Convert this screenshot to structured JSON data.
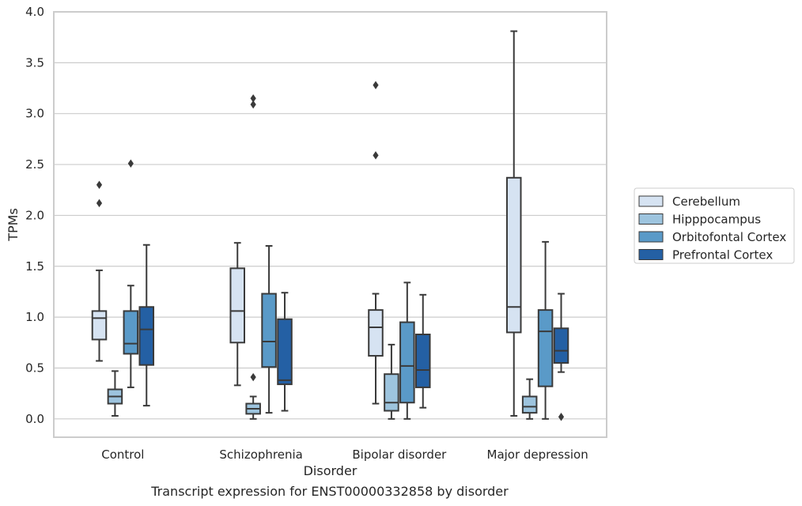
{
  "chart_data": {
    "type": "boxplot",
    "caption": "Transcript expression for ENST00000332858 by disorder",
    "xlabel": "Disorder",
    "ylabel": "TPMs",
    "ylim": [
      -0.18,
      4.0
    ],
    "yticks": [
      0.0,
      0.5,
      1.0,
      1.5,
      2.0,
      2.5,
      3.0,
      3.5,
      4.0
    ],
    "ytick_labels": [
      "0.0",
      "0.5",
      "1.0",
      "1.5",
      "2.0",
      "2.5",
      "3.0",
      "3.5",
      "4.0"
    ],
    "grid": true,
    "legend_position": "right",
    "categories": [
      "Control",
      "Schizophrenia",
      "Bipolar disorder",
      "Major depression"
    ],
    "series": [
      {
        "name": "Cerebellum",
        "color": "#d6e3f2",
        "boxes": [
          {
            "whislo": 0.57,
            "q1": 0.78,
            "med": 0.99,
            "q3": 1.06,
            "whishi": 1.46,
            "fliers": [
              2.12,
              2.3
            ]
          },
          {
            "whislo": 0.33,
            "q1": 0.75,
            "med": 1.06,
            "q3": 1.48,
            "whishi": 1.73,
            "fliers": []
          },
          {
            "whislo": 0.15,
            "q1": 0.62,
            "med": 0.9,
            "q3": 1.07,
            "whishi": 1.23,
            "fliers": [
              2.59,
              3.28
            ]
          },
          {
            "whislo": 0.03,
            "q1": 0.85,
            "med": 1.1,
            "q3": 2.37,
            "whishi": 3.81,
            "fliers": []
          }
        ]
      },
      {
        "name": "Hipppocampus",
        "color": "#9dc4de",
        "boxes": [
          {
            "whislo": 0.03,
            "q1": 0.15,
            "med": 0.22,
            "q3": 0.29,
            "whishi": 0.47,
            "fliers": []
          },
          {
            "whislo": 0.0,
            "q1": 0.05,
            "med": 0.1,
            "q3": 0.15,
            "whishi": 0.22,
            "fliers": [
              0.41,
              3.09,
              3.15
            ]
          },
          {
            "whislo": 0.0,
            "q1": 0.08,
            "med": 0.16,
            "q3": 0.44,
            "whishi": 0.73,
            "fliers": []
          },
          {
            "whislo": 0.0,
            "q1": 0.06,
            "med": 0.12,
            "q3": 0.22,
            "whishi": 0.39,
            "fliers": []
          }
        ]
      },
      {
        "name": "Orbitofontal Cortex",
        "color": "#5a9ac8",
        "boxes": [
          {
            "whislo": 0.31,
            "q1": 0.64,
            "med": 0.74,
            "q3": 1.06,
            "whishi": 1.31,
            "fliers": [
              2.51
            ]
          },
          {
            "whislo": 0.06,
            "q1": 0.51,
            "med": 0.76,
            "q3": 1.23,
            "whishi": 1.7,
            "fliers": []
          },
          {
            "whislo": 0.0,
            "q1": 0.16,
            "med": 0.52,
            "q3": 0.95,
            "whishi": 1.34,
            "fliers": []
          },
          {
            "whislo": 0.0,
            "q1": 0.32,
            "med": 0.86,
            "q3": 1.07,
            "whishi": 1.74,
            "fliers": []
          }
        ]
      },
      {
        "name": "Prefrontal Cortex",
        "color": "#2460a4",
        "boxes": [
          {
            "whislo": 0.13,
            "q1": 0.53,
            "med": 0.88,
            "q3": 1.1,
            "whishi": 1.71,
            "fliers": []
          },
          {
            "whislo": 0.08,
            "q1": 0.34,
            "med": 0.38,
            "q3": 0.98,
            "whishi": 1.24,
            "fliers": []
          },
          {
            "whislo": 0.11,
            "q1": 0.31,
            "med": 0.48,
            "q3": 0.83,
            "whishi": 1.22,
            "fliers": []
          },
          {
            "whislo": 0.46,
            "q1": 0.55,
            "med": 0.67,
            "q3": 0.89,
            "whishi": 1.23,
            "fliers": [
              0.02
            ]
          }
        ]
      }
    ]
  }
}
